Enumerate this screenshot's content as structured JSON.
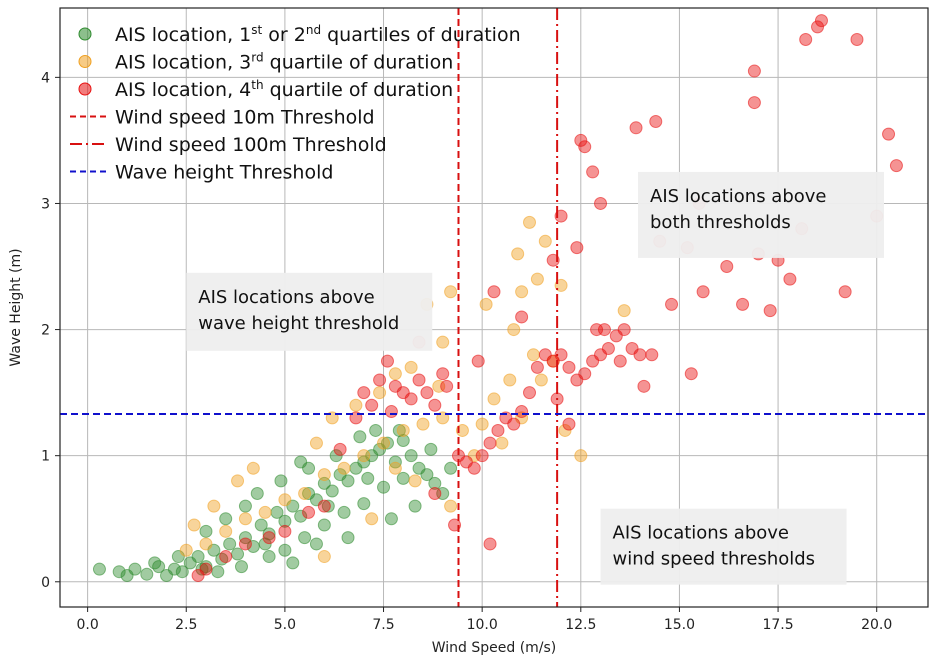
{
  "chart_data": {
    "type": "scatter",
    "xlabel": "Wind Speed (m/s)",
    "ylabel": "Wave Height (m)",
    "xlim": [
      -0.7,
      21.3
    ],
    "ylim": [
      -0.2,
      4.55
    ],
    "xticks": [
      "0.0",
      "2.5",
      "5.0",
      "7.5",
      "10.0",
      "12.5",
      "15.0",
      "17.5",
      "20.0"
    ],
    "yticks": [
      "0",
      "1",
      "2",
      "3",
      "4"
    ],
    "grid": true,
    "legend_position": "top-left",
    "legend": [
      {
        "text": "AIS location, 1",
        "sup": "st",
        "mid": " or 2",
        "sup2": "nd",
        "tail": " quartiles of duration",
        "marker": "circle",
        "color": "#2e8b2e"
      },
      {
        "text": "AIS location, 3",
        "sup": "rd",
        "mid": "",
        "sup2": "",
        "tail": " quartile of duration",
        "marker": "circle",
        "color": "#f0a020"
      },
      {
        "text": "AIS location, 4",
        "sup": "th",
        "mid": "",
        "sup2": "",
        "tail": " quartile of duration",
        "marker": "circle",
        "color": "#e81010"
      },
      {
        "text": "Wind speed 10m Threshold",
        "marker": "dashed",
        "color": "#d81010"
      },
      {
        "text": "Wind speed 100m Threshold",
        "marker": "dashdot",
        "color": "#d81010"
      },
      {
        "text": "Wave height Threshold",
        "marker": "dashed",
        "color": "#1010cc"
      }
    ],
    "thresholds": {
      "wind_10m": 9.4,
      "wind_100m": 11.9,
      "wave_height": 1.33
    },
    "annotations": [
      {
        "lines": [
          "AIS locations above",
          "both thresholds"
        ],
        "x": 13.95,
        "y": 3.25
      },
      {
        "lines": [
          "AIS locations above",
          "wave height threshold"
        ],
        "x": 2.5,
        "y": 2.45
      },
      {
        "lines": [
          "AIS locations above",
          "wind speed thresholds"
        ],
        "x": 13.0,
        "y": 0.58
      }
    ],
    "series": [
      {
        "name": "AIS location, 1st or 2nd quartiles of duration",
        "color": "#2e8b2e",
        "points": [
          [
            0.3,
            0.1
          ],
          [
            0.8,
            0.08
          ],
          [
            1.0,
            0.05
          ],
          [
            1.2,
            0.1
          ],
          [
            1.5,
            0.06
          ],
          [
            1.8,
            0.12
          ],
          [
            2.0,
            0.05
          ],
          [
            2.2,
            0.1
          ],
          [
            2.4,
            0.08
          ],
          [
            2.6,
            0.15
          ],
          [
            2.8,
            0.2
          ],
          [
            3.0,
            0.12
          ],
          [
            3.2,
            0.25
          ],
          [
            3.4,
            0.18
          ],
          [
            3.6,
            0.3
          ],
          [
            3.8,
            0.22
          ],
          [
            4.0,
            0.35
          ],
          [
            4.2,
            0.28
          ],
          [
            4.4,
            0.45
          ],
          [
            4.6,
            0.38
          ],
          [
            4.8,
            0.55
          ],
          [
            5.0,
            0.48
          ],
          [
            5.2,
            0.6
          ],
          [
            5.4,
            0.52
          ],
          [
            5.6,
            0.7
          ],
          [
            5.8,
            0.65
          ],
          [
            6.0,
            0.78
          ],
          [
            6.2,
            0.72
          ],
          [
            6.4,
            0.85
          ],
          [
            6.6,
            0.8
          ],
          [
            6.8,
            0.9
          ],
          [
            7.0,
            0.95
          ],
          [
            7.2,
            1.0
          ],
          [
            7.4,
            1.05
          ],
          [
            7.6,
            1.1
          ],
          [
            7.8,
            0.95
          ],
          [
            8.0,
            1.12
          ],
          [
            8.2,
            1.0
          ],
          [
            8.4,
            0.9
          ],
          [
            8.6,
            0.85
          ],
          [
            8.8,
            0.78
          ],
          [
            9.0,
            0.7
          ],
          [
            3.0,
            0.4
          ],
          [
            3.5,
            0.5
          ],
          [
            4.0,
            0.6
          ],
          [
            4.5,
            0.3
          ],
          [
            5.0,
            0.25
          ],
          [
            5.5,
            0.35
          ],
          [
            6.0,
            0.45
          ],
          [
            6.5,
            0.55
          ],
          [
            7.0,
            0.62
          ],
          [
            7.5,
            0.75
          ],
          [
            8.0,
            0.82
          ],
          [
            1.7,
            0.15
          ],
          [
            2.3,
            0.2
          ],
          [
            2.9,
            0.1
          ],
          [
            4.3,
            0.7
          ],
          [
            4.9,
            0.8
          ],
          [
            5.6,
            0.9
          ],
          [
            6.3,
            1.0
          ],
          [
            6.9,
            1.15
          ],
          [
            7.3,
            1.2
          ],
          [
            5.2,
            0.15
          ],
          [
            5.8,
            0.3
          ],
          [
            6.6,
            0.35
          ],
          [
            7.7,
            0.5
          ],
          [
            8.3,
            0.6
          ],
          [
            3.3,
            0.08
          ],
          [
            3.9,
            0.12
          ],
          [
            4.6,
            0.2
          ],
          [
            7.1,
            0.82
          ],
          [
            7.9,
            1.2
          ],
          [
            8.7,
            1.05
          ],
          [
            9.2,
            0.9
          ],
          [
            6.1,
            0.6
          ],
          [
            5.4,
            0.95
          ]
        ]
      },
      {
        "name": "AIS location, 3rd quartile of duration",
        "color": "#f0a020",
        "points": [
          [
            2.5,
            0.25
          ],
          [
            3.0,
            0.3
          ],
          [
            3.5,
            0.4
          ],
          [
            4.0,
            0.5
          ],
          [
            4.5,
            0.55
          ],
          [
            5.0,
            0.65
          ],
          [
            5.5,
            0.7
          ],
          [
            6.0,
            0.85
          ],
          [
            6.5,
            0.9
          ],
          [
            7.0,
            1.0
          ],
          [
            7.5,
            1.1
          ],
          [
            8.0,
            1.2
          ],
          [
            8.5,
            1.25
          ],
          [
            9.0,
            1.3
          ],
          [
            9.5,
            1.2
          ],
          [
            10.0,
            1.25
          ],
          [
            10.5,
            1.1
          ],
          [
            11.0,
            1.3
          ],
          [
            11.2,
            2.85
          ],
          [
            10.9,
            2.6
          ],
          [
            11.0,
            2.3
          ],
          [
            10.8,
            2.0
          ],
          [
            11.3,
            1.8
          ],
          [
            11.5,
            1.6
          ],
          [
            11.6,
            2.7
          ],
          [
            11.4,
            2.4
          ],
          [
            9.2,
            2.3
          ],
          [
            8.6,
            2.2
          ],
          [
            9.0,
            1.9
          ],
          [
            8.2,
            1.7
          ],
          [
            7.8,
            1.65
          ],
          [
            6.8,
            1.4
          ],
          [
            6.2,
            1.3
          ],
          [
            5.8,
            1.1
          ],
          [
            4.2,
            0.9
          ],
          [
            3.8,
            0.8
          ],
          [
            3.2,
            0.6
          ],
          [
            2.7,
            0.45
          ],
          [
            6.0,
            0.2
          ],
          [
            7.2,
            0.5
          ],
          [
            7.8,
            0.9
          ],
          [
            8.3,
            0.8
          ],
          [
            9.2,
            0.6
          ],
          [
            9.8,
            1.0
          ],
          [
            10.3,
            1.45
          ],
          [
            10.7,
            1.6
          ],
          [
            12.1,
            1.2
          ],
          [
            12.5,
            1.0
          ],
          [
            13.6,
            2.15
          ],
          [
            10.1,
            2.2
          ],
          [
            11.8,
            1.75
          ],
          [
            12.0,
            2.35
          ],
          [
            7.4,
            1.5
          ],
          [
            8.9,
            1.55
          ]
        ]
      },
      {
        "name": "AIS location, 4th quartile of duration",
        "color": "#e81010",
        "points": [
          [
            3.0,
            0.1
          ],
          [
            3.5,
            0.2
          ],
          [
            4.0,
            0.3
          ],
          [
            5.0,
            0.4
          ],
          [
            6.0,
            0.6
          ],
          [
            6.8,
            1.3
          ],
          [
            7.0,
            1.5
          ],
          [
            7.2,
            1.4
          ],
          [
            7.4,
            1.6
          ],
          [
            7.6,
            1.75
          ],
          [
            7.8,
            1.55
          ],
          [
            8.0,
            1.5
          ],
          [
            8.2,
            1.45
          ],
          [
            8.4,
            1.6
          ],
          [
            8.6,
            1.5
          ],
          [
            8.8,
            1.4
          ],
          [
            9.0,
            1.65
          ],
          [
            9.1,
            1.55
          ],
          [
            9.4,
            1.0
          ],
          [
            9.6,
            0.95
          ],
          [
            9.8,
            0.9
          ],
          [
            10.0,
            1.0
          ],
          [
            10.2,
            1.1
          ],
          [
            10.4,
            1.2
          ],
          [
            10.6,
            1.3
          ],
          [
            10.8,
            1.25
          ],
          [
            11.0,
            1.35
          ],
          [
            11.2,
            1.5
          ],
          [
            11.4,
            1.7
          ],
          [
            11.6,
            1.8
          ],
          [
            11.8,
            1.75
          ],
          [
            12.0,
            1.8
          ],
          [
            12.2,
            1.7
          ],
          [
            12.4,
            1.6
          ],
          [
            12.6,
            1.65
          ],
          [
            12.8,
            1.75
          ],
          [
            13.0,
            1.8
          ],
          [
            13.2,
            1.85
          ],
          [
            13.4,
            1.95
          ],
          [
            13.6,
            2.0
          ],
          [
            13.8,
            1.85
          ],
          [
            14.0,
            1.8
          ],
          [
            14.3,
            1.8
          ],
          [
            13.1,
            2.0
          ],
          [
            12.9,
            2.0
          ],
          [
            13.5,
            1.75
          ],
          [
            17.5,
            2.55
          ],
          [
            18.5,
            4.4
          ],
          [
            18.6,
            4.45
          ],
          [
            17.0,
            2.6
          ],
          [
            12.0,
            2.9
          ],
          [
            13.0,
            3.0
          ],
          [
            12.5,
            3.5
          ],
          [
            14.5,
            2.7
          ],
          [
            15.2,
            2.65
          ],
          [
            16.2,
            2.5
          ],
          [
            17.8,
            2.4
          ],
          [
            20.3,
            3.55
          ],
          [
            19.5,
            4.3
          ],
          [
            18.2,
            4.3
          ],
          [
            16.9,
            4.05
          ],
          [
            16.9,
            3.8
          ],
          [
            15.5,
            3.0
          ],
          [
            14.8,
            2.2
          ],
          [
            12.8,
            3.25
          ],
          [
            12.4,
            2.65
          ],
          [
            11.8,
            2.55
          ],
          [
            11.0,
            2.1
          ],
          [
            10.3,
            2.3
          ],
          [
            9.9,
            1.75
          ],
          [
            8.4,
            1.9
          ],
          [
            7.7,
            1.35
          ],
          [
            6.4,
            1.05
          ],
          [
            5.6,
            0.55
          ],
          [
            4.6,
            0.35
          ],
          [
            2.8,
            0.05
          ],
          [
            8.8,
            0.7
          ],
          [
            9.3,
            0.45
          ],
          [
            10.2,
            0.3
          ],
          [
            11.9,
            1.45
          ],
          [
            12.2,
            1.25
          ],
          [
            14.1,
            1.55
          ],
          [
            15.3,
            1.65
          ],
          [
            14.4,
            3.65
          ],
          [
            13.9,
            3.6
          ],
          [
            12.6,
            3.45
          ],
          [
            15.6,
            2.3
          ],
          [
            16.6,
            2.2
          ],
          [
            17.3,
            2.15
          ],
          [
            19.2,
            2.3
          ],
          [
            18.1,
            2.8
          ],
          [
            20.0,
            2.9
          ],
          [
            20.5,
            3.3
          ]
        ]
      }
    ]
  }
}
